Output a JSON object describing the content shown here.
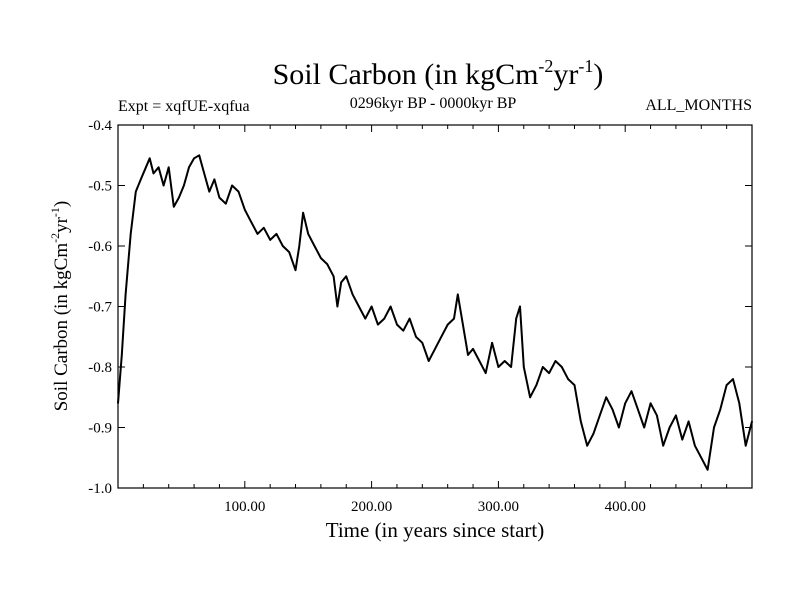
{
  "chart_data": {
    "type": "line",
    "title": {
      "main": "Soil Carbon (in kgCm",
      "sup1": "-2",
      "mid": "yr",
      "sup2": "-1",
      "end": ")"
    },
    "experiment": "Expt = xqfUE-xqfua",
    "period": "0296kyr BP - 0000kyr BP",
    "months": "ALL_MONTHS",
    "xlabel": "Time (in years since start)",
    "ylabel": {
      "main": "Soil Carbon (in kgCm",
      "sup1": "-2",
      "mid": "yr",
      "sup2": "-1",
      "end": ")"
    },
    "xlim": [
      0,
      500
    ],
    "ylim": [
      -1.0,
      -0.4
    ],
    "x_ticks": [
      100,
      200,
      300,
      400
    ],
    "x_tick_labels": [
      "100.00",
      "200.00",
      "300.00",
      "400.00"
    ],
    "y_ticks": [
      -1.0,
      -0.9,
      -0.8,
      -0.7,
      -0.6,
      -0.5,
      -0.4
    ],
    "y_tick_labels": [
      "-1.0",
      "-0.9",
      "-0.8",
      "-0.7",
      "-0.6",
      "-0.5",
      "-0.4"
    ],
    "grid": false,
    "series": [
      {
        "name": "Soil Carbon",
        "color": "#000000",
        "x": [
          0,
          3,
          6,
          10,
          14,
          18,
          22,
          25,
          28,
          32,
          36,
          40,
          44,
          48,
          52,
          56,
          60,
          64,
          68,
          72,
          76,
          80,
          85,
          90,
          95,
          100,
          105,
          110,
          115,
          120,
          125,
          130,
          135,
          140,
          143,
          146,
          150,
          155,
          160,
          165,
          170,
          173,
          176,
          180,
          185,
          190,
          195,
          200,
          205,
          210,
          215,
          220,
          225,
          230,
          235,
          240,
          245,
          250,
          255,
          260,
          265,
          268,
          272,
          276,
          280,
          285,
          290,
          295,
          300,
          305,
          310,
          314,
          317,
          320,
          325,
          330,
          335,
          340,
          345,
          350,
          355,
          360,
          365,
          370,
          375,
          380,
          385,
          390,
          395,
          400,
          405,
          410,
          415,
          420,
          425,
          430,
          435,
          440,
          445,
          450,
          455,
          460,
          465,
          470,
          475,
          480,
          485,
          490,
          495,
          500
        ],
        "values": [
          -0.86,
          -0.78,
          -0.68,
          -0.58,
          -0.51,
          -0.49,
          -0.47,
          -0.455,
          -0.48,
          -0.47,
          -0.5,
          -0.47,
          -0.535,
          -0.52,
          -0.5,
          -0.47,
          -0.455,
          -0.45,
          -0.48,
          -0.51,
          -0.49,
          -0.52,
          -0.53,
          -0.5,
          -0.51,
          -0.54,
          -0.56,
          -0.58,
          -0.57,
          -0.59,
          -0.58,
          -0.6,
          -0.61,
          -0.64,
          -0.6,
          -0.545,
          -0.58,
          -0.6,
          -0.62,
          -0.63,
          -0.65,
          -0.7,
          -0.66,
          -0.65,
          -0.68,
          -0.7,
          -0.72,
          -0.7,
          -0.73,
          -0.72,
          -0.7,
          -0.73,
          -0.74,
          -0.72,
          -0.75,
          -0.76,
          -0.79,
          -0.77,
          -0.75,
          -0.73,
          -0.72,
          -0.68,
          -0.73,
          -0.78,
          -0.77,
          -0.79,
          -0.81,
          -0.76,
          -0.8,
          -0.79,
          -0.8,
          -0.72,
          -0.7,
          -0.8,
          -0.85,
          -0.83,
          -0.8,
          -0.81,
          -0.79,
          -0.8,
          -0.82,
          -0.83,
          -0.89,
          -0.93,
          -0.91,
          -0.88,
          -0.85,
          -0.87,
          -0.9,
          -0.86,
          -0.84,
          -0.87,
          -0.9,
          -0.86,
          -0.88,
          -0.93,
          -0.9,
          -0.88,
          -0.92,
          -0.89,
          -0.93,
          -0.95,
          -0.97,
          -0.9,
          -0.87,
          -0.83,
          -0.82,
          -0.86,
          -0.93,
          -0.89
        ]
      }
    ]
  }
}
